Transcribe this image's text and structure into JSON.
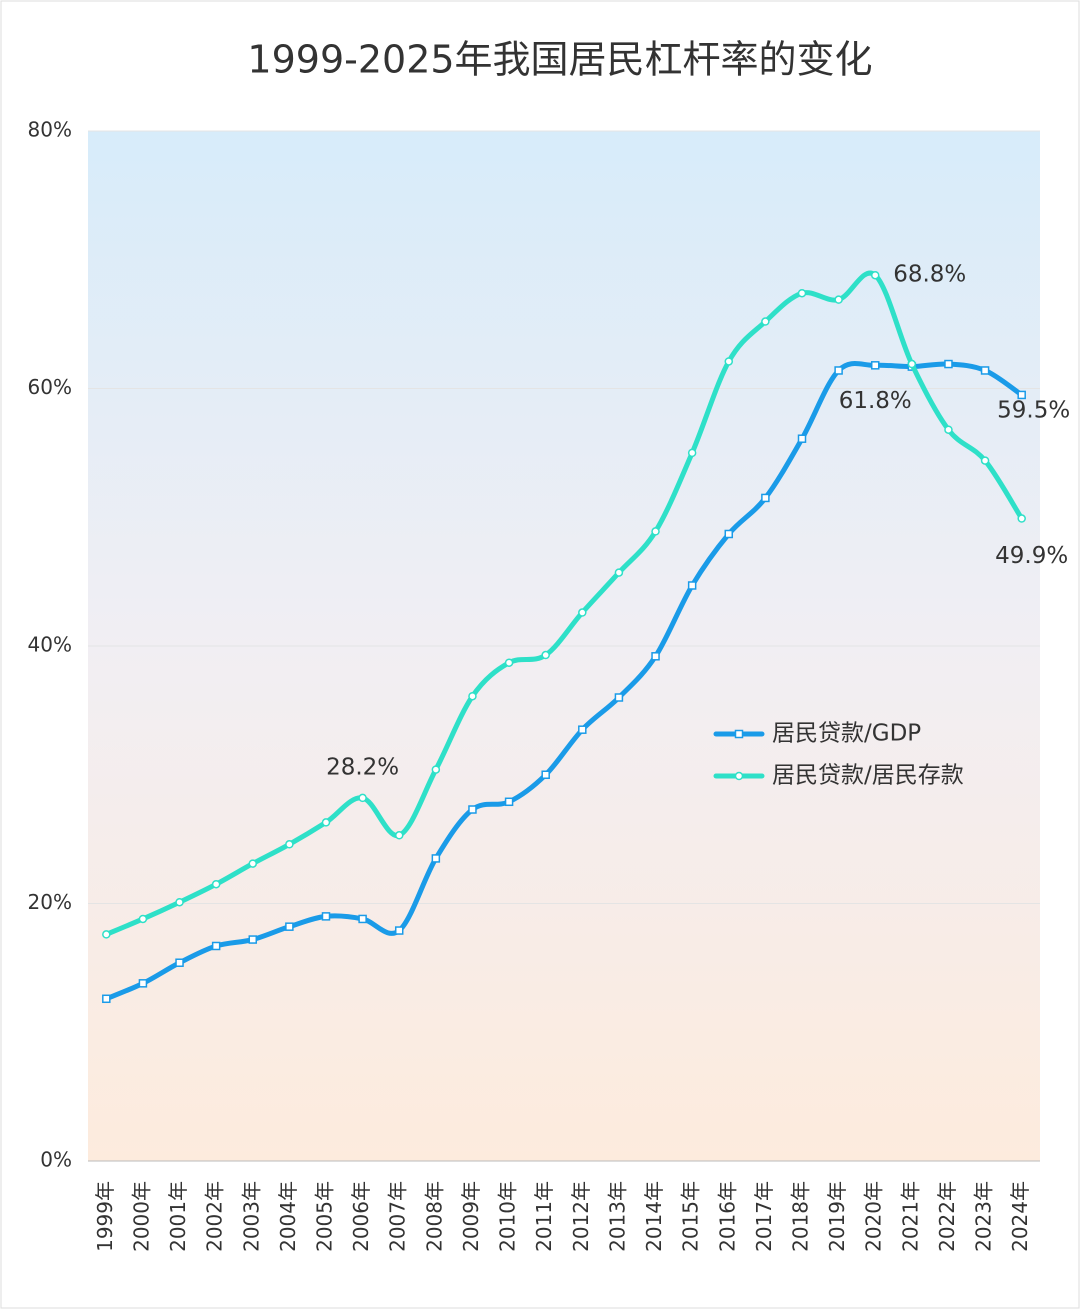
{
  "chart_data": {
    "type": "line",
    "title": "1999-2025年我国居民杠杆率的变化",
    "categories": [
      "1999年",
      "2000年",
      "2001年",
      "2002年",
      "2003年",
      "2004年",
      "2005年",
      "2006年",
      "2007年",
      "2008年",
      "2009年",
      "2010年",
      "2011年",
      "2012年",
      "2013年",
      "2014年",
      "2015年",
      "2016年",
      "2017年",
      "2018年",
      "2019年",
      "2020年",
      "2021年",
      "2022年",
      "2023年",
      "2024年"
    ],
    "series": [
      {
        "name": "居民贷款/GDP",
        "color": "#1a9be8",
        "marker": "square",
        "values": [
          12.6,
          13.8,
          15.4,
          16.7,
          17.2,
          18.2,
          19.0,
          18.8,
          17.9,
          23.5,
          27.3,
          27.9,
          30.0,
          33.5,
          36.0,
          39.2,
          44.7,
          48.7,
          51.5,
          56.1,
          61.4,
          61.8,
          61.7,
          61.9,
          61.4,
          59.5
        ],
        "value_labels": [
          null,
          null,
          null,
          null,
          null,
          null,
          null,
          null,
          null,
          null,
          null,
          null,
          null,
          null,
          null,
          null,
          null,
          null,
          null,
          null,
          null,
          "61.8%",
          null,
          null,
          null,
          "59.5%"
        ]
      },
      {
        "name": "居民贷款/居民存款",
        "color": "#2ee0c8",
        "marker": "circle",
        "values": [
          17.6,
          18.8,
          20.1,
          21.5,
          23.1,
          24.6,
          26.3,
          28.2,
          25.3,
          30.4,
          36.1,
          38.7,
          39.3,
          42.6,
          45.7,
          48.9,
          55.0,
          62.1,
          65.2,
          67.4,
          66.9,
          68.8,
          61.9,
          56.8,
          54.4,
          49.9
        ],
        "value_labels": [
          null,
          null,
          null,
          null,
          null,
          null,
          null,
          "28.2%",
          null,
          null,
          null,
          null,
          null,
          null,
          null,
          null,
          null,
          null,
          null,
          null,
          null,
          "68.8%",
          null,
          null,
          null,
          "49.9%"
        ]
      }
    ],
    "ylim": [
      0,
      80
    ],
    "yticks": [
      {
        "value": 0,
        "label": "0%"
      },
      {
        "value": 20,
        "label": "20%"
      },
      {
        "value": 40,
        "label": "40%"
      },
      {
        "value": 60,
        "label": "60%"
      },
      {
        "value": 80,
        "label": "80%"
      }
    ],
    "grid": true
  }
}
